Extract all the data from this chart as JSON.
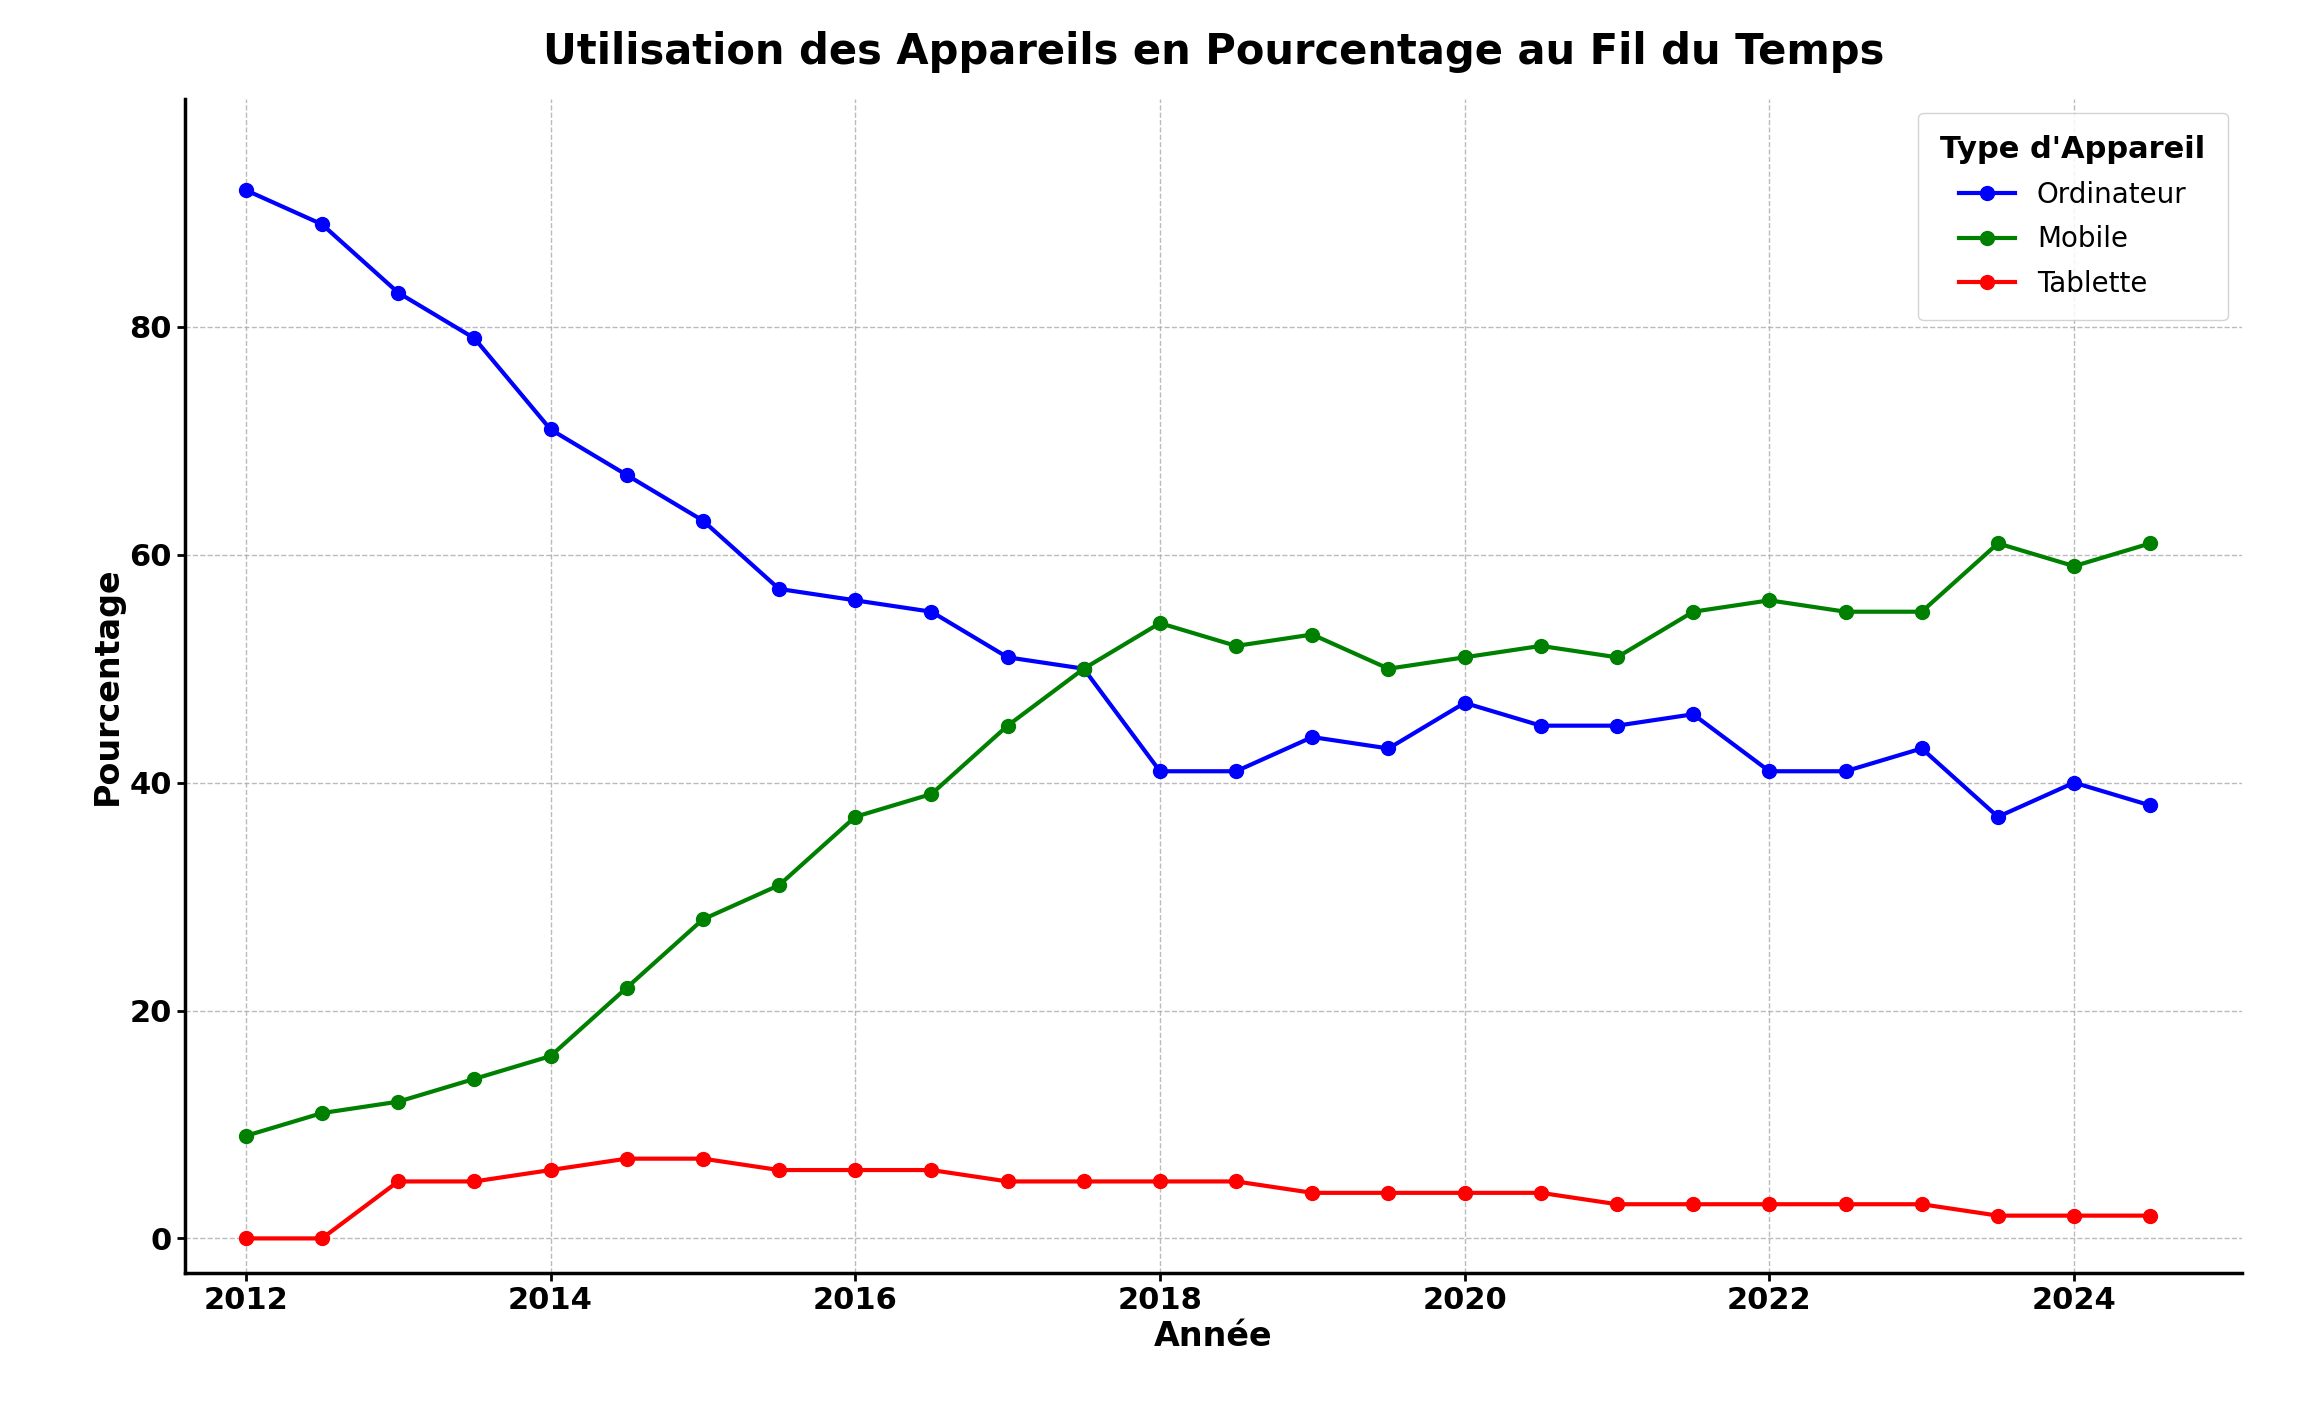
{
  "title": "Utilisation des Appareils en Pourcentage au Fil du Temps",
  "xlabel": "Année",
  "ylabel": "Pourcentage",
  "legend_title": "Type d'Appareil",
  "years": [
    2012.0,
    2012.5,
    2013.0,
    2013.5,
    2014.0,
    2014.5,
    2015.0,
    2015.5,
    2016.0,
    2016.5,
    2017.0,
    2017.5,
    2018.0,
    2018.5,
    2019.0,
    2019.5,
    2020.0,
    2020.5,
    2021.0,
    2021.5,
    2022.0,
    2022.5,
    2023.0,
    2023.5,
    2024.0,
    2024.5
  ],
  "desktop": [
    92,
    89,
    83,
    79,
    71,
    67,
    63,
    57,
    56,
    55,
    51,
    50,
    41,
    41,
    44,
    43,
    47,
    45,
    45,
    46,
    41,
    41,
    43,
    37,
    40,
    38
  ],
  "mobile": [
    9,
    11,
    12,
    14,
    16,
    22,
    28,
    31,
    37,
    39,
    45,
    50,
    54,
    52,
    53,
    50,
    51,
    52,
    51,
    55,
    56,
    55,
    55,
    61,
    59,
    61
  ],
  "tablet": [
    0,
    0,
    5,
    5,
    6,
    7,
    7,
    6,
    6,
    6,
    5,
    5,
    5,
    5,
    4,
    4,
    4,
    4,
    3,
    3,
    3,
    3,
    3,
    2,
    2,
    2
  ],
  "desktop_color": "#0000ff",
  "mobile_color": "#008000",
  "tablet_color": "#ff0000",
  "background_color": "#ffffff",
  "grid_color": "#aaaaaa",
  "xlim_left": 2011.6,
  "xlim_right": 2025.1,
  "ylim_bottom": -3,
  "ylim_top": 100,
  "title_fontsize": 30,
  "axis_label_fontsize": 24,
  "tick_fontsize": 22,
  "legend_fontsize": 20,
  "legend_title_fontsize": 22,
  "linewidth": 3.0,
  "markersize": 10,
  "spine_linewidth": 2.5
}
